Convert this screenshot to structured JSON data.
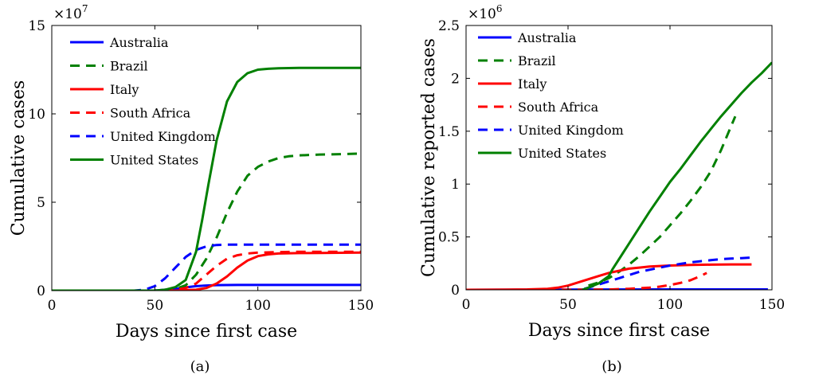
{
  "chart_data": [
    {
      "type": "line",
      "caption": "(a)",
      "xlabel": "Days since first case",
      "ylabel": "Cumulative cases",
      "y_multiplier": "×10",
      "y_multiplier_exp": "7",
      "xlim": [
        0,
        150
      ],
      "ylim": [
        0,
        15
      ],
      "xticks": [
        "0",
        "50",
        "100",
        "150"
      ],
      "yticks": [
        "0",
        "5",
        "10",
        "15"
      ],
      "legend_position": "top-left",
      "series": [
        {
          "name": "Australia",
          "color": "#0000ff",
          "dash": "solid",
          "x": [
            0,
            50,
            60,
            65,
            70,
            75,
            80,
            90,
            100,
            150
          ],
          "y": [
            0,
            0,
            0.1,
            0.18,
            0.25,
            0.29,
            0.31,
            0.32,
            0.32,
            0.32
          ]
        },
        {
          "name": "Brazil",
          "color": "#008000",
          "dash": "dashed",
          "x": [
            0,
            50,
            60,
            65,
            70,
            75,
            80,
            85,
            90,
            95,
            100,
            105,
            110,
            115,
            120,
            130,
            140,
            150
          ],
          "y": [
            0,
            0,
            0.1,
            0.3,
            0.9,
            1.8,
            3.0,
            4.4,
            5.6,
            6.5,
            7.0,
            7.3,
            7.5,
            7.6,
            7.65,
            7.7,
            7.72,
            7.75
          ]
        },
        {
          "name": "Italy",
          "color": "#ff0000",
          "dash": "solid",
          "x": [
            0,
            60,
            70,
            75,
            80,
            85,
            90,
            95,
            100,
            105,
            110,
            120,
            130,
            150
          ],
          "y": [
            0,
            0,
            0.05,
            0.15,
            0.4,
            0.8,
            1.3,
            1.7,
            1.95,
            2.05,
            2.1,
            2.12,
            2.13,
            2.15
          ]
        },
        {
          "name": "South Africa",
          "color": "#ff0000",
          "dash": "dashed",
          "x": [
            0,
            55,
            60,
            65,
            70,
            75,
            80,
            85,
            90,
            95,
            100,
            110,
            120,
            130,
            150
          ],
          "y": [
            0,
            0,
            0.05,
            0.15,
            0.4,
            0.9,
            1.4,
            1.8,
            2.0,
            2.1,
            2.15,
            2.18,
            2.2,
            2.2,
            2.2
          ]
        },
        {
          "name": "United Kingdom",
          "color": "#0000ff",
          "dash": "dashed",
          "x": [
            0,
            40,
            45,
            50,
            55,
            60,
            65,
            70,
            75,
            80,
            85,
            90,
            100,
            120,
            150
          ],
          "y": [
            0,
            0,
            0.05,
            0.25,
            0.7,
            1.3,
            1.9,
            2.3,
            2.5,
            2.58,
            2.6,
            2.6,
            2.6,
            2.6,
            2.6
          ]
        },
        {
          "name": "United States",
          "color": "#008000",
          "dash": "solid",
          "x": [
            0,
            50,
            55,
            60,
            65,
            70,
            73,
            76,
            80,
            85,
            90,
            95,
            100,
            105,
            110,
            120,
            130,
            150
          ],
          "y": [
            0,
            0,
            0.05,
            0.2,
            0.6,
            2.2,
            4.0,
            6.0,
            8.5,
            10.7,
            11.8,
            12.3,
            12.5,
            12.55,
            12.58,
            12.6,
            12.6,
            12.6
          ]
        }
      ]
    },
    {
      "type": "line",
      "caption": "(b)",
      "xlabel": "Days since first case",
      "ylabel": "Cumulative reported cases",
      "y_multiplier": "×10",
      "y_multiplier_exp": "6",
      "xlim": [
        0,
        150
      ],
      "ylim": [
        0,
        2.5
      ],
      "xticks": [
        "0",
        "50",
        "100",
        "150"
      ],
      "yticks": [
        "0",
        "0.5",
        "1",
        "1.5",
        "2",
        "2.5"
      ],
      "legend_position": "top-left",
      "series": [
        {
          "name": "Australia",
          "color": "#0000ff",
          "dash": "solid",
          "x": [
            0,
            50,
            100,
            148
          ],
          "y": [
            0,
            0.002,
            0.004,
            0.004
          ]
        },
        {
          "name": "Brazil",
          "color": "#008000",
          "dash": "dashed",
          "x": [
            60,
            65,
            70,
            75,
            80,
            85,
            90,
            95,
            100,
            105,
            110,
            115,
            120,
            125,
            130,
            132
          ],
          "y": [
            0.04,
            0.07,
            0.11,
            0.17,
            0.24,
            0.32,
            0.41,
            0.5,
            0.61,
            0.72,
            0.84,
            0.97,
            1.12,
            1.32,
            1.55,
            1.64
          ]
        },
        {
          "name": "Italy",
          "color": "#ff0000",
          "dash": "solid",
          "x": [
            0,
            20,
            30,
            40,
            45,
            50,
            55,
            60,
            65,
            70,
            75,
            80,
            85,
            90,
            95,
            100,
            110,
            120,
            130,
            140
          ],
          "y": [
            0,
            0.002,
            0.004,
            0.01,
            0.02,
            0.04,
            0.07,
            0.1,
            0.13,
            0.16,
            0.18,
            0.2,
            0.21,
            0.22,
            0.225,
            0.23,
            0.235,
            0.238,
            0.24,
            0.24
          ]
        },
        {
          "name": "South Africa",
          "color": "#ff0000",
          "dash": "dashed",
          "x": [
            0,
            50,
            70,
            80,
            90,
            95,
            100,
            105,
            110,
            115,
            118
          ],
          "y": [
            0,
            0.001,
            0.003,
            0.01,
            0.02,
            0.03,
            0.045,
            0.065,
            0.09,
            0.13,
            0.16
          ]
        },
        {
          "name": "United Kingdom",
          "color": "#0000ff",
          "dash": "dashed",
          "x": [
            58,
            60,
            65,
            70,
            75,
            80,
            85,
            90,
            95,
            100,
            105,
            110,
            115,
            120,
            125,
            130,
            135,
            140
          ],
          "y": [
            0.01,
            0.02,
            0.05,
            0.08,
            0.11,
            0.14,
            0.17,
            0.19,
            0.21,
            0.23,
            0.245,
            0.26,
            0.27,
            0.28,
            0.29,
            0.295,
            0.3,
            0.305
          ]
        },
        {
          "name": "United States",
          "color": "#008000",
          "dash": "solid",
          "x": [
            57,
            60,
            65,
            70,
            72,
            75,
            80,
            85,
            90,
            95,
            100,
            105,
            110,
            115,
            120,
            125,
            130,
            135,
            140,
            145,
            150
          ],
          "y": [
            0.0,
            0.02,
            0.06,
            0.13,
            0.2,
            0.29,
            0.44,
            0.59,
            0.74,
            0.88,
            1.02,
            1.14,
            1.27,
            1.4,
            1.52,
            1.64,
            1.75,
            1.86,
            1.96,
            2.05,
            2.15
          ]
        }
      ]
    }
  ]
}
